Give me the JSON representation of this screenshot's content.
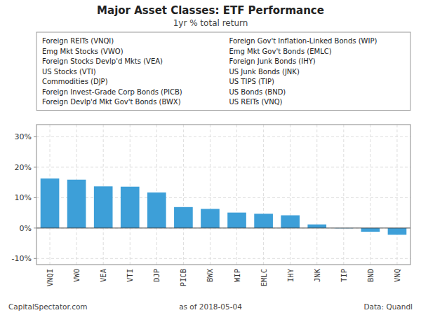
{
  "chart_data": {
    "type": "bar",
    "title": "Major Asset Classes: ETF Performance",
    "subtitle": "1yr % total return",
    "categories": [
      "VNQI",
      "VWO",
      "VEA",
      "VTI",
      "DJP",
      "PICB",
      "BWX",
      "WIP",
      "EMLC",
      "IHY",
      "JNK",
      "TIP",
      "BND",
      "VNQ"
    ],
    "values": [
      16.3,
      15.9,
      13.7,
      13.6,
      11.7,
      6.9,
      6.3,
      5.1,
      4.7,
      4.2,
      1.2,
      -0.1,
      -1.2,
      -2.2
    ],
    "color": "#3D9FD8",
    "ylim": [
      -12,
      34
    ],
    "yticks": [
      {
        "value": -10,
        "label": "-10%"
      },
      {
        "value": 0,
        "label": "0%"
      },
      {
        "value": 10,
        "label": "10%"
      },
      {
        "value": 20,
        "label": "20%"
      },
      {
        "value": 30,
        "label": "30%"
      }
    ],
    "grid": true,
    "annotations": [
      "Foreign REITs (VNQI)",
      "Emg Mkt Stocks (VWO)",
      "Foreign Stocks Devlp'd Mkts (VEA)",
      "US Stocks (VTI)",
      "Commodities (DJP)",
      "Foreign Invest-Grade Corp Bonds (PICB)",
      "Foreign Devlp'd Mkt Gov't Bonds (BWX)",
      "Foreign Gov't Inflation-Linked Bonds (WIP)",
      "Emg Mkt Gov't Bonds (EMLC)",
      "Foreign Junk Bonds (IHY)",
      "US Junk Bonds (JNK)",
      "US TIPS (TIP)",
      "US Bonds (BND)",
      "US REITs (VNQ)"
    ],
    "footer": [
      "CapitalSpectator.com",
      "as of  2018-05-04",
      "Data: Quandl"
    ]
  }
}
